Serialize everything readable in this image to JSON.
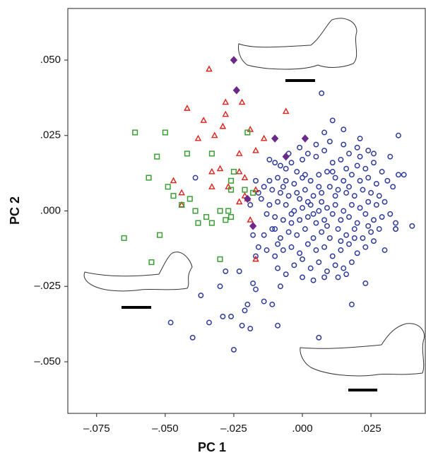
{
  "chart_data": {
    "type": "scatter",
    "xlabel": "PC 1",
    "ylabel": "PC 2",
    "xlim": [
      -0.0855,
      0.0448
    ],
    "ylim": [
      -0.0671,
      0.0671
    ],
    "xticks": [
      {
        "value": -0.075,
        "label": "–.075"
      },
      {
        "value": -0.05,
        "label": "–.050"
      },
      {
        "value": -0.025,
        "label": "–.025"
      },
      {
        "value": 0,
        "label": ".000"
      },
      {
        "value": 0.025,
        "label": ".025"
      }
    ],
    "yticks": [
      {
        "value": 0.05,
        "label": ".050"
      },
      {
        "value": 0.025,
        "label": ".025"
      },
      {
        "value": 0,
        "label": ".000"
      },
      {
        "value": -0.025,
        "label": "–.025"
      },
      {
        "value": -0.05,
        "label": "–.050"
      }
    ],
    "grid": false,
    "series": [
      {
        "color": "#2e3a9c",
        "marker": "circle",
        "x": [
          0.007,
          0.011,
          0.015,
          0.035,
          0.008,
          0.021,
          -0.039,
          -0.048,
          -0.04,
          -0.034,
          -0.025,
          -0.029,
          -0.037,
          -0.022,
          -0.019,
          -0.009,
          -0.026,
          -0.021,
          -0.02,
          -0.018,
          -0.017,
          -0.028,
          -0.023,
          -0.03,
          0.006,
          -0.014,
          -0.011,
          -0.008,
          0.018,
          0.023,
          0.03,
          0.034,
          0.04,
          0.037,
          0.034,
          0.032,
          -0.012,
          -0.01,
          -0.008,
          -0.006,
          -0.004,
          -0.002,
          0,
          0.002,
          0.005,
          0.008,
          0.011,
          0.014,
          0.017,
          0.02,
          0.023,
          0.026,
          0.029,
          0.031,
          0.027,
          0.024,
          0.021,
          0.018,
          0.015,
          0.012,
          0.009,
          0.006,
          0.003,
          0,
          -0.003,
          -0.006,
          -0.009,
          -0.012,
          -0.014,
          -0.011,
          -0.008,
          -0.005,
          -0.002,
          0.001,
          0.004,
          0.007,
          0.01,
          0.013,
          0.016,
          0.019,
          0.022,
          0.025,
          0.028,
          0.03,
          0.027,
          0.024,
          0.021,
          0.018,
          0.015,
          0.012,
          0.009,
          0.006,
          0.003,
          0,
          -0.003,
          -0.006,
          -0.009,
          -0.012,
          -0.015,
          -0.013,
          -0.01,
          -0.007,
          -0.004,
          -0.001,
          0.002,
          0.005,
          0.008,
          0.011,
          0.014,
          0.017,
          0.02,
          0.023,
          0.026,
          0.029,
          0.032,
          0.028,
          0.025,
          0.022,
          0.019,
          0.016,
          0.013,
          0.01,
          0.007,
          0.004,
          0.001,
          -0.002,
          -0.005,
          -0.008,
          -0.011,
          -0.014,
          -0.016,
          -0.013,
          -0.01,
          -0.007,
          -0.004,
          -0.001,
          0.002,
          0.005,
          0.008,
          0.011,
          0.014,
          0.017,
          0.02,
          0.023,
          0.026,
          0.018,
          0.015,
          0.012,
          0.009,
          0.006,
          0.003,
          0,
          -0.003,
          -0.006,
          -0.009,
          0,
          0.004,
          0.008,
          0.013,
          0.016,
          -0.017,
          -0.016,
          -0.018,
          -0.019,
          0.033,
          0.035,
          0.034,
          0.005,
          -0.001,
          0.01,
          0.015,
          0.02,
          0.024,
          -0.005,
          0.002,
          0.007,
          0.012,
          0.017,
          -0.007,
          -0.001,
          0.004,
          0.009,
          0.014,
          0.019,
          0.024,
          -0.004,
          -0.009,
          0.001,
          0.006,
          0.011,
          0.016,
          0.021,
          0.026,
          -0.017,
          -0.01
        ],
        "values": [
          0.039,
          0.03,
          0.027,
          0.025,
          0.026,
          0.024,
          0.011,
          -0.037,
          -0.042,
          -0.037,
          -0.046,
          -0.035,
          -0.028,
          -0.038,
          -0.039,
          -0.038,
          -0.035,
          -0.033,
          -0.031,
          -0.024,
          -0.026,
          -0.02,
          -0.02,
          -0.025,
          -0.042,
          -0.03,
          -0.031,
          -0.025,
          -0.031,
          -0.024,
          -0.013,
          -0.004,
          -0.005,
          0.012,
          -0.006,
          0.018,
          0.017,
          0.016,
          0.015,
          0.014,
          0.016,
          0.013,
          0.017,
          0.019,
          0.018,
          0.02,
          0.016,
          0.017,
          0.019,
          0.015,
          0.014,
          0.016,
          0.013,
          0.01,
          0.009,
          0.011,
          0.01,
          0.012,
          0.01,
          0.011,
          0.013,
          0.012,
          0.01,
          0.011,
          0.009,
          0.01,
          0.011,
          0.01,
          0.008,
          0.007,
          0.006,
          0.005,
          0.006,
          0.007,
          0.005,
          0.006,
          0.008,
          0.007,
          0.006,
          0.005,
          0.007,
          0.006,
          0.005,
          0.003,
          0.002,
          0.003,
          0.001,
          0.002,
          0,
          0.002,
          0.001,
          0,
          0.002,
          0.001,
          0,
          0.002,
          0.003,
          0.002,
          0.004,
          -0.001,
          -0.002,
          -0.003,
          -0.001,
          -0.003,
          -0.002,
          -0.004,
          -0.003,
          -0.001,
          -0.003,
          -0.002,
          -0.004,
          -0.001,
          -0.003,
          -0.002,
          -0.001,
          -0.006,
          -0.007,
          -0.009,
          -0.006,
          -0.008,
          -0.006,
          -0.009,
          -0.007,
          -0.009,
          -0.006,
          -0.008,
          -0.007,
          -0.009,
          -0.006,
          -0.008,
          -0.012,
          -0.013,
          -0.015,
          -0.013,
          -0.012,
          -0.014,
          -0.011,
          -0.013,
          -0.012,
          -0.015,
          -0.013,
          -0.011,
          -0.014,
          -0.012,
          -0.01,
          -0.017,
          -0.019,
          -0.018,
          -0.02,
          -0.017,
          -0.019,
          -0.016,
          -0.018,
          -0.021,
          -0.019,
          -0.022,
          -0.023,
          -0.022,
          -0.022,
          -0.021,
          -0.015,
          0.006,
          -0.008,
          0.002,
          0.008,
          0.012,
          -0.006,
          0.022,
          0.021,
          0.023,
          0.022,
          0.021,
          0.02,
          0.019,
          0.003,
          0.003,
          0.005,
          0.008,
          0.008,
          0.004,
          -0.001,
          -0.005,
          -0.01,
          -0.009,
          -0.005,
          -0.004,
          -0.011,
          0.012,
          0.008,
          0.013,
          0.014,
          0.018,
          0.019,
          0.01,
          -0.006
        ]
      },
      {
        "color": "#e0201b",
        "marker": "triangle",
        "x": [
          -0.034,
          -0.042,
          -0.028,
          -0.022,
          -0.006,
          -0.036,
          -0.028,
          -0.029,
          -0.019,
          -0.038,
          -0.032,
          -0.014,
          -0.023,
          -0.017,
          -0.033,
          -0.03,
          -0.023,
          -0.047,
          -0.033,
          -0.027,
          -0.021,
          -0.044,
          -0.021,
          -0.02,
          -0.017,
          -0.044,
          -0.019,
          -0.017,
          -0.023
        ],
        "values": [
          0.047,
          0.034,
          0.036,
          0.036,
          0.033,
          0.03,
          0.032,
          0.028,
          0.027,
          0.024,
          0.025,
          0.024,
          0.019,
          0.02,
          0.013,
          0.014,
          0.013,
          0.01,
          0.008,
          0.008,
          0.011,
          0.006,
          0.005,
          0.004,
          0.007,
          0.002,
          -0.003,
          -0.016,
          0.003
        ]
      },
      {
        "color": "#3aa035",
        "marker": "square",
        "x": [
          -0.061,
          -0.05,
          -0.053,
          -0.042,
          -0.033,
          -0.02,
          -0.056,
          -0.049,
          -0.047,
          -0.041,
          -0.044,
          -0.025,
          -0.026,
          -0.021,
          -0.026,
          -0.018,
          -0.035,
          -0.038,
          -0.033,
          -0.03,
          -0.027,
          -0.028,
          -0.026,
          -0.052,
          -0.065,
          -0.055,
          -0.03,
          -0.039
        ],
        "values": [
          0.026,
          0.026,
          0.018,
          0.019,
          0.019,
          0.026,
          0.011,
          0.008,
          0.005,
          0.004,
          0.002,
          0.013,
          0.01,
          0.007,
          0.007,
          0.006,
          -0.002,
          -0.004,
          -0.004,
          0,
          0,
          -0.003,
          -0.002,
          -0.008,
          -0.009,
          -0.017,
          -0.016,
          0
        ]
      },
      {
        "color": "#6b2a8a",
        "marker": "diamond",
        "x": [
          -0.025,
          -0.024,
          -0.01,
          0.001,
          -0.006,
          -0.02,
          -0.018
        ],
        "values": [
          0.05,
          0.04,
          0.024,
          0.024,
          0.018,
          0.004,
          -0.005
        ]
      }
    ]
  }
}
